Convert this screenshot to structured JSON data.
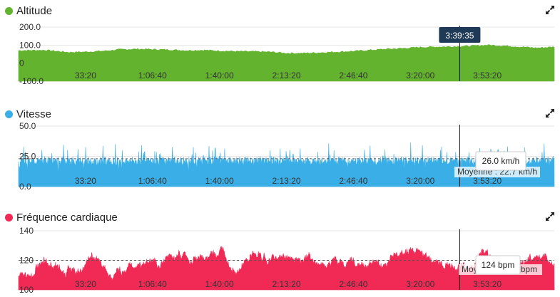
{
  "colors": {
    "altitude": "#63b32e",
    "speed": "#3aaee6",
    "heart": "#f02a55"
  },
  "x_tick_labels": [
    "33:20",
    "1:06:40",
    "1:40:00",
    "2:13:20",
    "2:46:40",
    "3:20:00",
    "3:53:20"
  ],
  "cursor_time": "3:39:35",
  "icons": {
    "expand": "expand-arrows-icon"
  },
  "chart_data": [
    {
      "type": "area",
      "title": "Altitude",
      "x_unit": "seconds",
      "xlim": [
        0,
        16000
      ],
      "ylim": [
        -100,
        200
      ],
      "y_ticks": [
        "200.0",
        "100.0",
        "0",
        "-100.0"
      ],
      "x_ticks": [
        2000,
        4000,
        6000,
        8000,
        10000,
        12000,
        14000
      ],
      "points": [
        [
          0,
          70
        ],
        [
          800,
          72
        ],
        [
          1500,
          60
        ],
        [
          2000,
          62
        ],
        [
          2600,
          68
        ],
        [
          3000,
          75
        ],
        [
          3500,
          78
        ],
        [
          4000,
          76
        ],
        [
          4500,
          74
        ],
        [
          5000,
          70
        ],
        [
          5500,
          72
        ],
        [
          6000,
          68
        ],
        [
          6500,
          65
        ],
        [
          7000,
          64
        ],
        [
          7500,
          62
        ],
        [
          8000,
          55
        ],
        [
          8500,
          55
        ],
        [
          9000,
          58
        ],
        [
          9500,
          62
        ],
        [
          10000,
          66
        ],
        [
          10500,
          72
        ],
        [
          11000,
          78
        ],
        [
          11500,
          82
        ],
        [
          12000,
          88
        ],
        [
          12500,
          90
        ],
        [
          13000,
          92
        ],
        [
          13500,
          95
        ],
        [
          14000,
          100
        ],
        [
          14500,
          96
        ],
        [
          15000,
          90
        ],
        [
          15500,
          84
        ],
        [
          16000,
          90
        ]
      ],
      "cursor": {
        "x": 13175,
        "label": "3:39:35"
      }
    },
    {
      "type": "area",
      "title": "Vitesse",
      "x_unit": "seconds",
      "xlim": [
        0,
        16000
      ],
      "ylim": [
        0,
        50
      ],
      "y_ticks": [
        "50.0",
        "25.0",
        "0.0"
      ],
      "x_ticks": [
        2000,
        4000,
        6000,
        8000,
        10000,
        12000,
        14000
      ],
      "baseline_mean": 23,
      "average_label": "Moyenne : 22.7 km/h",
      "cursor": {
        "x": 13175,
        "label": "26.0 km/h"
      }
    },
    {
      "type": "area",
      "title": "Fréquence cardiaque",
      "x_unit": "seconds",
      "xlim": [
        0,
        16000
      ],
      "ylim": [
        100,
        140
      ],
      "y_ticks": [
        "140",
        "120",
        "100"
      ],
      "x_ticks": [
        2000,
        4000,
        6000,
        8000,
        10000,
        12000,
        14000
      ],
      "baseline_mean": 120,
      "average_label": "Moyenne : 120 bpm",
      "cursor": {
        "x": 13175,
        "label": "124 bpm"
      }
    }
  ]
}
